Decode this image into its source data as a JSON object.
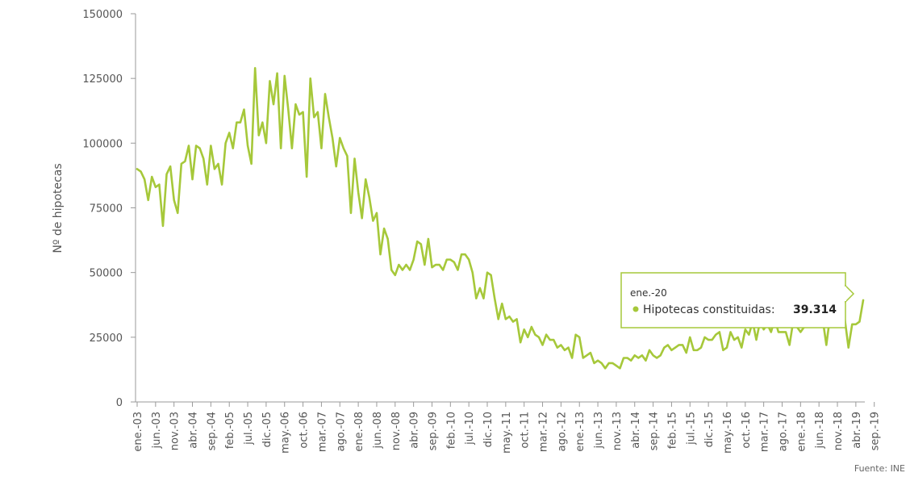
{
  "chart_data": {
    "type": "line",
    "ylabel": "Nº de hipotecas",
    "ylim": [
      0,
      150000
    ],
    "yticks": [
      "0",
      "25000",
      "50000",
      "75000",
      "100000",
      "125000",
      "150000"
    ],
    "xtick_labels": [
      "ene.-03",
      "jun.-03",
      "nov.-03",
      "abr.-04",
      "sep.-04",
      "feb.-05",
      "jul.-05",
      "dic.-05",
      "may.-06",
      "oct.-06",
      "mar.-07",
      "ago.-07",
      "ene.-08",
      "jun.-08",
      "nov.-08",
      "abr.-09",
      "sep.-09",
      "feb.-10",
      "jul.-10",
      "dic.-10",
      "may.-11",
      "oct.-11",
      "mar.-12",
      "ago.-12",
      "ene.-13",
      "jun.-13",
      "nov.-13",
      "abr.-14",
      "sep.-14",
      "feb.-15",
      "jul.-15",
      "dic.-15",
      "may.-16",
      "oct.-16",
      "mar.-17",
      "ago.-17",
      "ene.-18",
      "jun.-18",
      "nov.-18",
      "abr.-19",
      "sep.-19"
    ],
    "grid": false,
    "series": [
      {
        "color": "#a6c83a",
        "values": [
          90000,
          89000,
          86000,
          78000,
          87000,
          83000,
          84000,
          68000,
          88000,
          91000,
          78000,
          73000,
          92000,
          93000,
          99000,
          86000,
          99000,
          98000,
          94000,
          84000,
          99000,
          90000,
          92000,
          84000,
          100000,
          104000,
          98000,
          108000,
          108000,
          113000,
          99000,
          92000,
          129000,
          103000,
          108000,
          100000,
          124000,
          115000,
          127000,
          98000,
          126000,
          113000,
          98000,
          115000,
          111000,
          112000,
          87000,
          125000,
          110000,
          112000,
          98000,
          119000,
          110000,
          102000,
          91000,
          102000,
          98000,
          95000,
          73000,
          94000,
          81000,
          71000,
          86000,
          79000,
          70000,
          73000,
          57000,
          67000,
          63000,
          51000,
          49000,
          53000,
          51000,
          53000,
          51000,
          55000,
          62000,
          61000,
          53000,
          63000,
          52000,
          53000,
          53000,
          51000,
          55000,
          55000,
          54000,
          51000,
          57000,
          57000,
          55000,
          50000,
          40000,
          44000,
          40000,
          50000,
          49000,
          40000,
          32000,
          38000,
          32000,
          33000,
          31000,
          32000,
          23000,
          28000,
          25000,
          29000,
          26000,
          25000,
          22000,
          26000,
          24000,
          24000,
          21000,
          22000,
          20000,
          21000,
          17000,
          26000,
          25000,
          17000,
          18000,
          19000,
          15000,
          16000,
          15000,
          13000,
          15000,
          15000,
          14000,
          13000,
          17000,
          17000,
          16000,
          18000,
          17000,
          18000,
          16000,
          20000,
          18000,
          17000,
          18000,
          21000,
          22000,
          20000,
          21000,
          22000,
          22000,
          19000,
          25000,
          20000,
          20000,
          21000,
          25000,
          24000,
          24000,
          26000,
          27000,
          20000,
          21000,
          27000,
          24000,
          25000,
          21000,
          28000,
          26000,
          31000,
          24000,
          31000,
          28000,
          30000,
          27000,
          32000,
          27000,
          27000,
          27000,
          22000,
          31000,
          29000,
          27000,
          29000,
          31000,
          29000,
          30000,
          32000,
          32000,
          22000,
          33000,
          31000,
          36000,
          33000,
          32000,
          21000,
          30000,
          30000,
          31000,
          39314
        ]
      }
    ],
    "tooltip": {
      "date": "ene.-20",
      "series_label": "Hipotecas constituidas:",
      "value_label": "39.314"
    },
    "source": "Fuente: INE"
  }
}
